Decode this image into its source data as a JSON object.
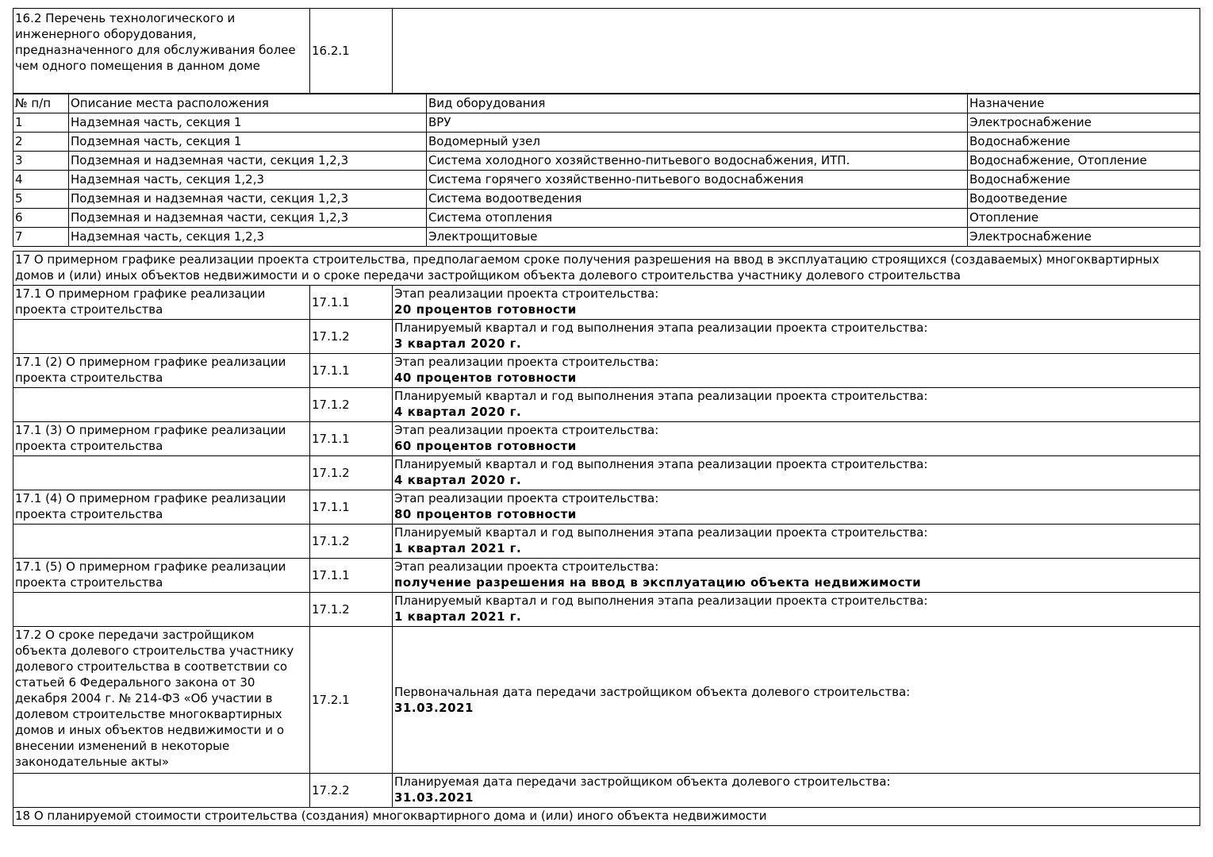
{
  "s16": {
    "title": "16.2 Перечень технологического и инженерного оборудования, предназначенного для обслуживания более чем одного помещения в данном доме",
    "code": "16.2.1",
    "value": ""
  },
  "equipment": {
    "headers": [
      "№ п/п",
      "Описание места расположения",
      "Вид оборудования",
      "Назначение"
    ],
    "rows": [
      [
        "1",
        "Надземная часть, секция 1",
        "ВРУ",
        "Электроснабжение"
      ],
      [
        "2",
        "Подземная часть, секция 1",
        "Водомерный узел",
        "Водоснабжение"
      ],
      [
        "3",
        "Подземная и надземная части, секция 1,2,3",
        "Система холодного хозяйственно-питьевого водоснабжения, ИТП.",
        "Водоснабжение, Отопление"
      ],
      [
        "4",
        "Надземная часть, секция 1,2,3",
        "Система горячего хозяйственно-питьевого водоснабжения",
        "Водоснабжение"
      ],
      [
        "5",
        "Подземная и надземная части, секция 1,2,3",
        "Система водоотведения",
        "Водоотведение"
      ],
      [
        "6",
        "Подземная и надземная части, секция 1,2,3",
        "Система отопления",
        "Отопление"
      ],
      [
        "7",
        "Надземная часть, секция 1,2,3",
        "Электрощитовые",
        "Электроснабжение"
      ]
    ]
  },
  "s17": {
    "title": "17 О примерном графике реализации проекта строительства, предполагаемом сроке получения разрешения на ввод в эксплуатацию строящихся (создаваемых) многоквартирных домов и (или) иных объектов недвижимости и о сроке передачи застройщиком объекта долевого строительства участнику долевого строительства",
    "stages": [
      {
        "label": "17.1 О примерном графике реализации проекта строительства",
        "c1": "17.1.1",
        "l1": "Этап реализации проекта строительства:",
        "v1": "20 процентов готовности",
        "c2": "17.1.2",
        "l2": "Планируемый квартал и год выполнения этапа реализации проекта строительства:",
        "v2": "3 квартал 2020 г."
      },
      {
        "label": "17.1 (2) О примерном графике реализации проекта строительства",
        "c1": "17.1.1",
        "l1": "Этап реализации проекта строительства:",
        "v1": "40 процентов готовности",
        "c2": "17.1.2",
        "l2": "Планируемый квартал и год выполнения этапа реализации проекта строительства:",
        "v2": "4 квартал 2020 г."
      },
      {
        "label": "17.1 (3) О примерном графике реализации проекта строительства",
        "c1": "17.1.1",
        "l1": "Этап реализации проекта строительства:",
        "v1": "60 процентов готовности",
        "c2": "17.1.2",
        "l2": "Планируемый квартал и год выполнения этапа реализации проекта строительства:",
        "v2": "4 квартал 2020 г."
      },
      {
        "label": "17.1 (4) О примерном графике реализации проекта строительства",
        "c1": "17.1.1",
        "l1": "Этап реализации проекта строительства:",
        "v1": "80 процентов готовности",
        "c2": "17.1.2",
        "l2": "Планируемый квартал и год выполнения этапа реализации проекта строительства:",
        "v2": "1 квартал 2021 г."
      },
      {
        "label": "17.1 (5) О примерном графике реализации проекта строительства",
        "c1": "17.1.1",
        "l1": "Этап реализации проекта строительства:",
        "v1": "получение разрешения на ввод в эксплуатацию объекта недвижимости",
        "c2": "17.1.2",
        "l2": "Планируемый квартал и год выполнения этапа реализации проекта строительства:",
        "v2": "1 квартал 2021 г."
      }
    ],
    "transfer": {
      "label": "17.2 О сроке передачи застройщиком объекта долевого строительства участнику долевого строительства в соответствии со статьей 6 Федерального закона от 30 декабря 2004 г. № 214-ФЗ «Об участии в долевом строительстве многоквартирных домов и иных объектов недвижимости и о внесении изменений в некоторые законодательные акты»",
      "c1": "17.2.1",
      "l1": "Первоначальная дата передачи застройщиком объекта долевого строительства:",
      "v1": "31.03.2021",
      "c2": "17.2.2",
      "l2": "Планируемая дата передачи застройщиком объекта долевого строительства:",
      "v2": "31.03.2021"
    }
  },
  "s18": {
    "title": "18 О планируемой стоимости строительства (создания) многоквартирного дома и (или) иного объекта недвижимости"
  }
}
